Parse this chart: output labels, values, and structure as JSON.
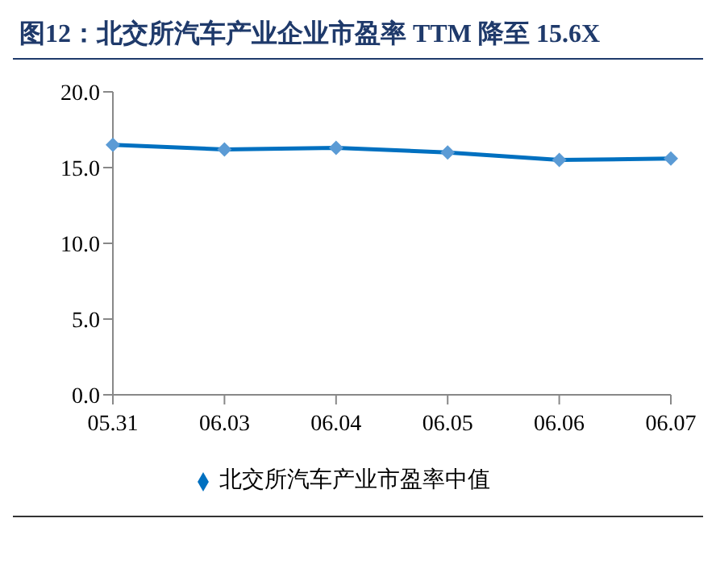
{
  "chart_data": {
    "type": "line",
    "title": "图12：北交所汽车产业企业市盈率 TTM 降至 15.6X",
    "categories": [
      "05.31",
      "06.03",
      "06.04",
      "06.05",
      "06.06",
      "06.07"
    ],
    "series": [
      {
        "name": "北交所汽车产业市盈率中值",
        "color": "#0070c0",
        "values": [
          16.5,
          16.2,
          16.3,
          16.0,
          15.5,
          15.6
        ]
      }
    ],
    "ylim": [
      0,
      20
    ],
    "yticks": [
      {
        "value": 0,
        "label": "0.0"
      },
      {
        "value": 5,
        "label": "5.0"
      },
      {
        "value": 10,
        "label": "10.0"
      },
      {
        "value": 15,
        "label": "15.0"
      },
      {
        "value": 20,
        "label": "20.0"
      }
    ],
    "grid": false,
    "legend": "bottom",
    "marker": "diamond",
    "line_style": "solid"
  }
}
